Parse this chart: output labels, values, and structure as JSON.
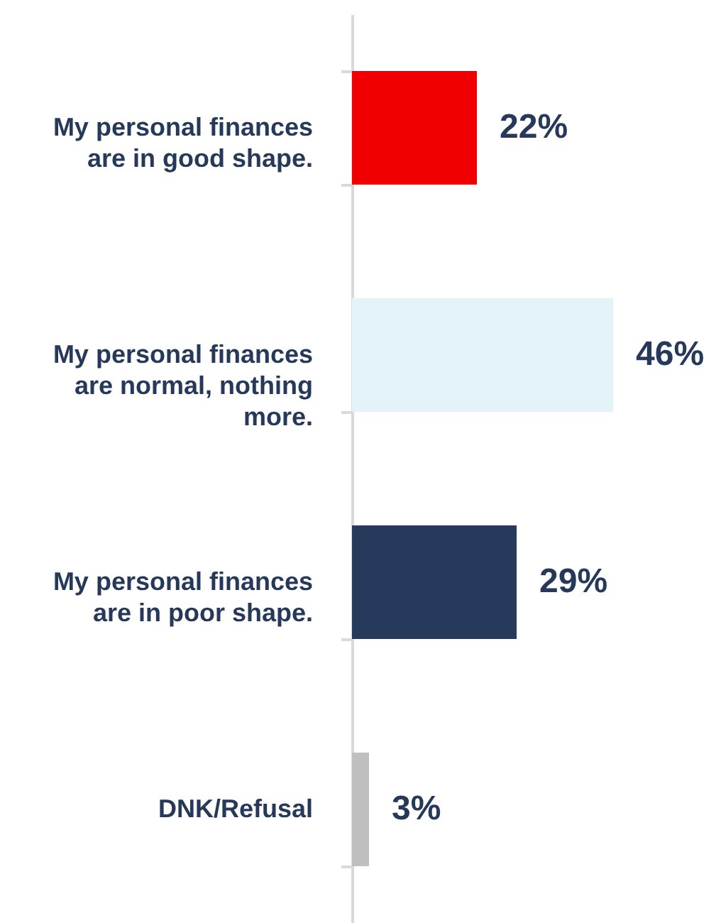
{
  "chart_data": {
    "type": "bar",
    "orientation": "horizontal",
    "categories": [
      "My personal finances are in good shape.",
      "My personal finances are normal, nothing more.",
      "My personal finances are in poor shape.",
      "DNK/Refusal"
    ],
    "values": [
      22,
      46,
      29,
      3
    ],
    "colors": [
      "#f00000",
      "#e4f3f8",
      "#263a5c",
      "#bfbfbf"
    ],
    "value_labels": [
      "22%",
      "46%",
      "29%",
      "3%"
    ]
  }
}
